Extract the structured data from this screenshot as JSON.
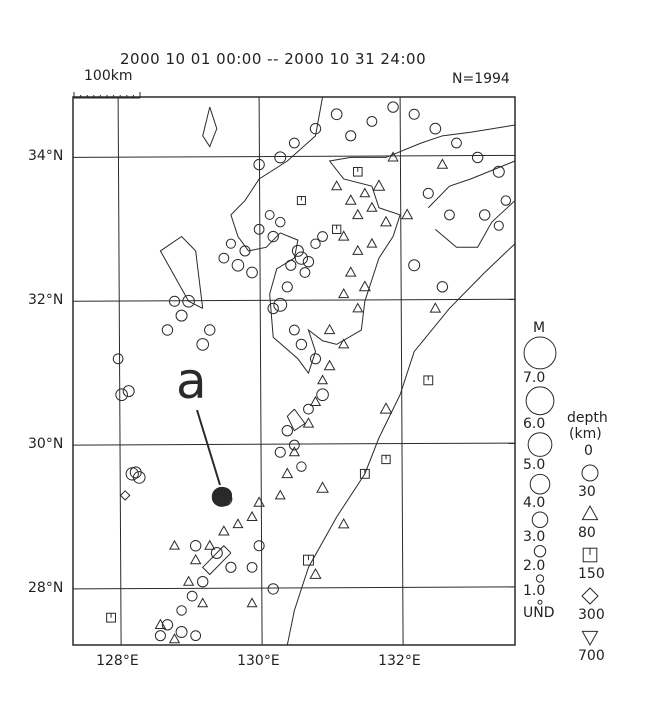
{
  "title": "2000 10 01 00:00 -- 2000 10 31 24:00",
  "count_label": "N=1994",
  "scale_bar": {
    "label": "100km",
    "km": 100
  },
  "annotation": {
    "label": "a",
    "target": [
      129.47,
      29.28
    ]
  },
  "axes": {
    "lon_ticks": [
      {
        "v": 128,
        "label": "128°E"
      },
      {
        "v": 130,
        "label": "130°E"
      },
      {
        "v": 132,
        "label": "132°E"
      }
    ],
    "lat_ticks": [
      {
        "v": 34,
        "label": "34°N"
      },
      {
        "v": 32,
        "label": "32°N"
      },
      {
        "v": 30,
        "label": "30°N"
      },
      {
        "v": 28,
        "label": "28°N"
      }
    ],
    "lon_range": [
      127.36,
      133.63
    ],
    "lat_range": [
      27.22,
      34.84
    ]
  },
  "legend": {
    "magnitude_title": "M",
    "magnitudes": [
      {
        "m": 7,
        "label": "7.0"
      },
      {
        "m": 6,
        "label": "6.0"
      },
      {
        "m": 5,
        "label": "5.0"
      },
      {
        "m": 4,
        "label": "4.0"
      },
      {
        "m": 3,
        "label": "3.0"
      },
      {
        "m": 2,
        "label": "2.0"
      },
      {
        "m": 1,
        "label": "1.0"
      },
      {
        "m": 0,
        "label": "UND"
      }
    ],
    "depth_title_1": "depth",
    "depth_title_2": "(km)",
    "depths": [
      {
        "label": "0",
        "symbol": "circle"
      },
      {
        "label": "30",
        "symbol": "triangle"
      },
      {
        "label": "80",
        "symbol": "square"
      },
      {
        "label": "150",
        "symbol": "diamond"
      },
      {
        "label": "300",
        "symbol": "inverted-triangle"
      },
      {
        "label": "700"
      }
    ]
  },
  "colors": {
    "ink": "#2a2a2a",
    "background": "#ffffff"
  },
  "chart_data": {
    "type": "scatter",
    "note_fields": [
      "lon",
      "lat",
      "magnitude",
      "depth_symbol"
    ],
    "events": [
      [
        129.47,
        29.28,
        5.0,
        "circle"
      ],
      [
        129.5,
        29.3,
        4.2,
        "circle"
      ],
      [
        129.44,
        29.26,
        3.8,
        "circle"
      ],
      [
        129.52,
        29.25,
        3.5,
        "circle"
      ],
      [
        128.2,
        29.6,
        3.2,
        "circle"
      ],
      [
        128.3,
        29.55,
        3.0,
        "circle"
      ],
      [
        128.25,
        29.62,
        2.8,
        "circle"
      ],
      [
        128.05,
        30.7,
        3.0,
        "circle"
      ],
      [
        128.15,
        30.75,
        2.8,
        "circle"
      ],
      [
        128.0,
        31.2,
        2.4,
        "circle"
      ],
      [
        128.7,
        31.6,
        2.6,
        "circle"
      ],
      [
        128.9,
        31.8,
        2.8,
        "circle"
      ],
      [
        129.0,
        32.0,
        3.0,
        "circle"
      ],
      [
        128.8,
        32.0,
        2.5,
        "circle"
      ],
      [
        129.2,
        31.4,
        3.0,
        "circle"
      ],
      [
        129.3,
        31.6,
        2.6,
        "circle"
      ],
      [
        129.5,
        32.6,
        2.4,
        "circle"
      ],
      [
        129.7,
        32.5,
        3.0,
        "circle"
      ],
      [
        129.8,
        32.7,
        2.5,
        "circle"
      ],
      [
        129.9,
        32.4,
        2.7,
        "circle"
      ],
      [
        129.6,
        32.8,
        2.2,
        "circle"
      ],
      [
        130.0,
        33.0,
        2.4,
        "circle"
      ],
      [
        130.2,
        32.9,
        2.6,
        "circle"
      ],
      [
        130.3,
        33.1,
        2.3,
        "circle"
      ],
      [
        130.15,
        33.2,
        2.1,
        "circle"
      ],
      [
        130.6,
        32.6,
        3.2,
        "circle"
      ],
      [
        130.55,
        32.7,
        2.8,
        "circle"
      ],
      [
        130.7,
        32.55,
        2.6,
        "circle"
      ],
      [
        130.45,
        32.5,
        2.5,
        "circle"
      ],
      [
        130.65,
        32.4,
        2.4,
        "circle"
      ],
      [
        130.8,
        32.8,
        2.3,
        "circle"
      ],
      [
        130.9,
        32.9,
        2.4,
        "circle"
      ],
      [
        130.4,
        32.2,
        2.5,
        "circle"
      ],
      [
        130.3,
        31.95,
        3.4,
        "circle"
      ],
      [
        130.2,
        31.9,
        2.6,
        "circle"
      ],
      [
        130.5,
        31.6,
        2.4,
        "circle"
      ],
      [
        130.6,
        31.4,
        2.6,
        "circle"
      ],
      [
        130.8,
        31.2,
        2.5,
        "circle"
      ],
      [
        130.9,
        30.7,
        3.0,
        "circle"
      ],
      [
        130.7,
        30.5,
        2.4,
        "circle"
      ],
      [
        130.4,
        30.2,
        2.6,
        "circle"
      ],
      [
        130.5,
        30.0,
        2.4,
        "circle"
      ],
      [
        130.3,
        29.9,
        2.5,
        "circle"
      ],
      [
        130.6,
        29.7,
        2.3,
        "circle"
      ],
      [
        130.0,
        33.9,
        2.6,
        "circle"
      ],
      [
        130.3,
        34.0,
        2.8,
        "circle"
      ],
      [
        130.5,
        34.2,
        2.4,
        "circle"
      ],
      [
        130.8,
        34.4,
        2.6,
        "circle"
      ],
      [
        131.1,
        34.6,
        2.7,
        "circle"
      ],
      [
        131.3,
        34.3,
        2.5,
        "circle"
      ],
      [
        131.6,
        34.5,
        2.4,
        "circle"
      ],
      [
        131.9,
        34.7,
        2.6,
        "circle"
      ],
      [
        132.2,
        34.6,
        2.5,
        "circle"
      ],
      [
        132.5,
        34.4,
        2.7,
        "circle"
      ],
      [
        132.8,
        34.2,
        2.4,
        "circle"
      ],
      [
        133.1,
        34.0,
        2.6,
        "circle"
      ],
      [
        133.4,
        33.8,
        2.8,
        "circle"
      ],
      [
        133.5,
        33.4,
        2.3,
        "circle"
      ],
      [
        132.4,
        33.5,
        2.5,
        "circle"
      ],
      [
        132.7,
        33.2,
        2.4,
        "circle"
      ],
      [
        133.2,
        33.2,
        2.6,
        "circle"
      ],
      [
        133.4,
        33.05,
        2.2,
        "circle"
      ],
      [
        132.6,
        32.2,
        2.6,
        "circle"
      ],
      [
        132.2,
        32.5,
        2.8,
        "circle"
      ],
      [
        129.1,
        28.6,
        2.6,
        "circle"
      ],
      [
        129.4,
        28.5,
        2.8,
        "circle"
      ],
      [
        129.6,
        28.3,
        2.5,
        "circle"
      ],
      [
        129.2,
        28.1,
        2.6,
        "circle"
      ],
      [
        129.05,
        27.9,
        2.4,
        "circle"
      ],
      [
        128.7,
        27.5,
        2.6,
        "circle"
      ],
      [
        128.9,
        27.4,
        2.8,
        "circle"
      ],
      [
        129.1,
        27.35,
        2.4,
        "circle"
      ],
      [
        128.6,
        27.35,
        2.5,
        "circle"
      ],
      [
        128.9,
        27.7,
        2.3,
        "circle"
      ],
      [
        129.9,
        28.3,
        2.4,
        "circle"
      ],
      [
        130.0,
        28.6,
        2.5,
        "circle"
      ],
      [
        130.2,
        28.0,
        2.6,
        "circle"
      ],
      [
        131.1,
        33.6,
        2.5,
        "triangle"
      ],
      [
        131.3,
        33.4,
        2.7,
        "triangle"
      ],
      [
        131.4,
        33.2,
        2.6,
        "triangle"
      ],
      [
        131.5,
        33.5,
        2.4,
        "triangle"
      ],
      [
        131.7,
        33.6,
        3.0,
        "triangle"
      ],
      [
        131.6,
        33.3,
        2.5,
        "triangle"
      ],
      [
        131.8,
        33.1,
        2.7,
        "triangle"
      ],
      [
        131.2,
        32.9,
        2.6,
        "triangle"
      ],
      [
        131.4,
        32.7,
        2.5,
        "triangle"
      ],
      [
        131.6,
        32.8,
        2.4,
        "triangle"
      ],
      [
        131.3,
        32.4,
        2.6,
        "triangle"
      ],
      [
        131.5,
        32.2,
        2.8,
        "triangle"
      ],
      [
        131.2,
        32.1,
        2.5,
        "triangle"
      ],
      [
        131.4,
        31.9,
        2.4,
        "triangle"
      ],
      [
        131.0,
        31.6,
        2.6,
        "triangle"
      ],
      [
        131.2,
        31.4,
        2.5,
        "triangle"
      ],
      [
        131.0,
        31.1,
        2.7,
        "triangle"
      ],
      [
        130.9,
        30.9,
        2.4,
        "triangle"
      ],
      [
        130.8,
        30.6,
        2.5,
        "triangle"
      ],
      [
        130.7,
        30.3,
        2.6,
        "triangle"
      ],
      [
        130.5,
        29.9,
        2.5,
        "triangle"
      ],
      [
        130.4,
        29.6,
        2.7,
        "triangle"
      ],
      [
        130.3,
        29.3,
        2.4,
        "triangle"
      ],
      [
        130.0,
        29.2,
        2.6,
        "triangle"
      ],
      [
        129.9,
        29.0,
        2.5,
        "triangle"
      ],
      [
        129.7,
        28.9,
        2.4,
        "triangle"
      ],
      [
        129.5,
        28.8,
        2.6,
        "triangle"
      ],
      [
        129.3,
        28.6,
        2.5,
        "triangle"
      ],
      [
        129.1,
        28.4,
        2.6,
        "triangle"
      ],
      [
        128.8,
        28.6,
        2.4,
        "triangle"
      ],
      [
        129.0,
        28.1,
        2.5,
        "triangle"
      ],
      [
        129.2,
        27.8,
        2.4,
        "triangle"
      ],
      [
        128.6,
        27.5,
        2.6,
        "triangle"
      ],
      [
        128.8,
        27.3,
        2.5,
        "triangle"
      ],
      [
        130.9,
        29.4,
        3.0,
        "triangle"
      ],
      [
        131.2,
        28.9,
        2.6,
        "triangle"
      ],
      [
        131.8,
        30.5,
        3.0,
        "triangle"
      ],
      [
        132.5,
        31.9,
        2.6,
        "triangle"
      ],
      [
        132.1,
        33.2,
        2.8,
        "triangle"
      ],
      [
        132.6,
        33.9,
        2.6,
        "triangle"
      ],
      [
        131.9,
        34.0,
        2.5,
        "triangle"
      ],
      [
        130.8,
        28.2,
        2.8,
        "triangle"
      ],
      [
        129.9,
        27.8,
        2.4,
        "triangle"
      ],
      [
        130.7,
        28.4,
        3.0,
        "square"
      ],
      [
        131.5,
        29.6,
        2.6,
        "square"
      ],
      [
        131.8,
        29.8,
        2.4,
        "square"
      ],
      [
        132.4,
        30.9,
        2.6,
        "square"
      ],
      [
        131.4,
        33.8,
        2.5,
        "square"
      ],
      [
        130.6,
        33.4,
        2.3,
        "square"
      ],
      [
        127.9,
        27.6,
        2.6,
        "square"
      ],
      [
        131.1,
        33.0,
        2.4,
        "square"
      ],
      [
        128.1,
        29.3,
        2.2,
        "diamond"
      ]
    ]
  }
}
